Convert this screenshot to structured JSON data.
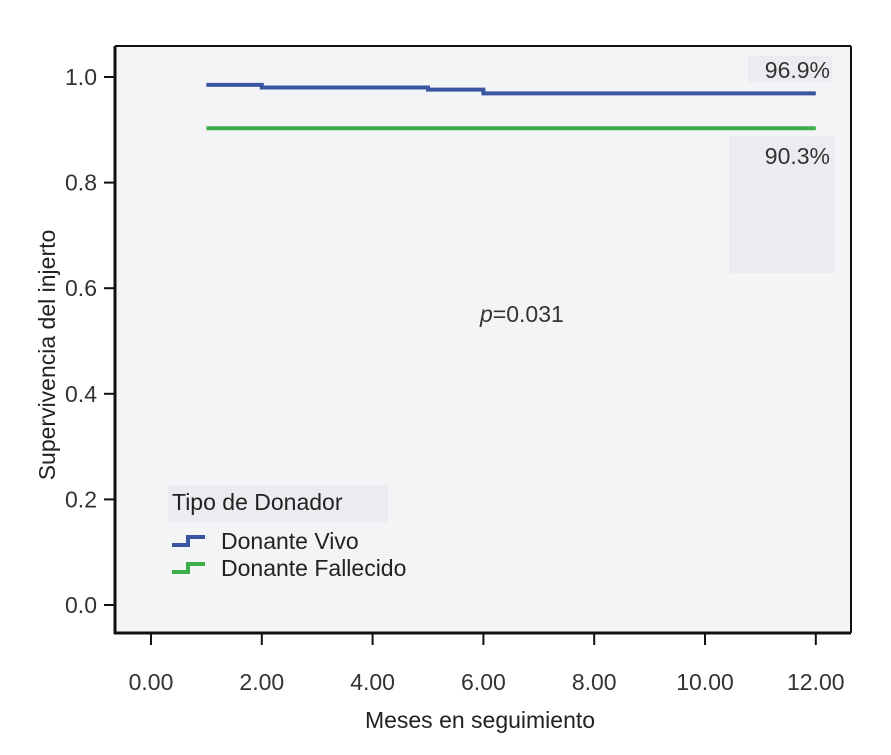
{
  "chart_data": {
    "type": "line",
    "step": true,
    "xlabel": "Meses en seguimiento",
    "ylabel": "Supervivencia del injerto",
    "xlim": [
      -1.0,
      12.6
    ],
    "ylim": [
      -0.05,
      1.06
    ],
    "xticks": [
      0,
      2,
      4,
      6,
      8,
      10,
      12
    ],
    "xtick_labels": [
      "0.00",
      "2.00",
      "4.00",
      "6.00",
      "8.00",
      "10.00",
      "12.00"
    ],
    "yticks": [
      0,
      0.2,
      0.4,
      0.6,
      0.8,
      1.0
    ],
    "ytick_labels": [
      "0.0",
      "0.2",
      "0.4",
      "0.6",
      "0.8",
      "1.0"
    ],
    "grid": false,
    "background": "#f3f4f6",
    "legend": {
      "title": "Tipo de Donador",
      "placement": "bottom-left"
    },
    "series": [
      {
        "name": "Donante Vivo",
        "color": "#3a56a0",
        "x": [
          1.0,
          2.0,
          5.0,
          6.0,
          12.0
        ],
        "y": [
          0.985,
          0.98,
          0.976,
          0.969,
          0.969
        ]
      },
      {
        "name": "Donante Fallecido",
        "color": "#3fad4a",
        "x": [
          1.0,
          12.0
        ],
        "y": [
          0.903,
          0.903
        ]
      }
    ],
    "annotations": [
      {
        "text": "96.9%",
        "x": 12.0,
        "y": 0.969,
        "anchor": "above"
      },
      {
        "text": "90.3%",
        "x": 12.0,
        "y": 0.903,
        "anchor": "below"
      },
      {
        "text_italic": "p",
        "text": "=0.031",
        "x": 6.0,
        "y": 0.55
      }
    ]
  }
}
